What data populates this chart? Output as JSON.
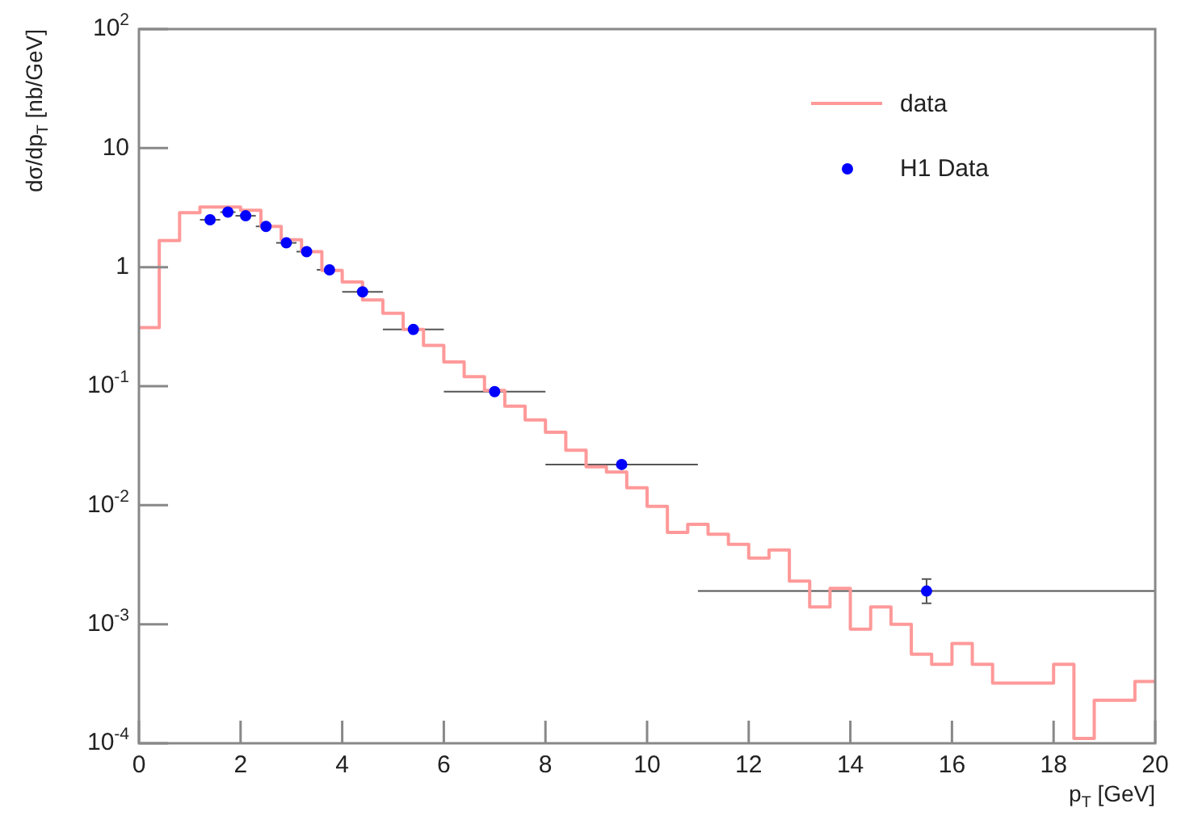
{
  "chart_data": {
    "type": "histogram",
    "xlabel": "p$_{T}$ [GeV]",
    "ylabel": "dσ/dp$_{T}$ [nb/GeV]",
    "xlim": [
      0,
      20
    ],
    "xticks": [
      0,
      2,
      4,
      6,
      8,
      10,
      12,
      14,
      16,
      18,
      20
    ],
    "ylim": [
      0.0001,
      100
    ],
    "yticks": [
      {
        "value": 0.0001,
        "label": "10$^{-4}$"
      },
      {
        "value": 0.001,
        "label": "10$^{-3}$"
      },
      {
        "value": 0.01,
        "label": "10$^{-2}$"
      },
      {
        "value": 0.1,
        "label": "10$^{-1}$"
      },
      1,
      10,
      {
        "value": 100,
        "label": "10$^{2}$"
      }
    ],
    "log": "y",
    "legend": "top right",
    "marker": "circle",
    "series": [
      {
        "name": "data",
        "type": "histogram",
        "color": "#ff9999",
        "bins": [
          0,
          0.4,
          0.8,
          1.2,
          1.6,
          2,
          2.4,
          2.8,
          3.2,
          3.6,
          4,
          4.4,
          4.8,
          5.2,
          5.6,
          6,
          6.4,
          6.8,
          7.2,
          7.6,
          8,
          8.4,
          8.8,
          9.2,
          9.6,
          10,
          10.4,
          10.8,
          11.2,
          11.6,
          12,
          12.4,
          12.8,
          13.2,
          13.6,
          14,
          14.4,
          14.8,
          15.2,
          15.6,
          16,
          16.4,
          16.8,
          17.2,
          17.6,
          18,
          18.4,
          18.8,
          19.2,
          19.6,
          20
        ],
        "values": [
          0.31,
          1.67,
          2.87,
          3.2,
          3.2,
          3.0,
          2.2,
          1.7,
          1.35,
          0.94,
          0.75,
          0.53,
          0.41,
          0.3,
          0.22,
          0.16,
          0.12,
          0.092,
          0.068,
          0.052,
          0.041,
          0.029,
          0.021,
          0.019,
          0.014,
          0.0098,
          0.0059,
          0.0069,
          0.0057,
          0.0047,
          0.0036,
          0.0042,
          0.0023,
          0.0014,
          0.002,
          0.00091,
          0.0014,
          0.001,
          0.00056,
          0.00046,
          0.00069,
          0.00046,
          0.00032,
          0.00032,
          0.00032,
          0.00046,
          0.00011,
          0.00023,
          0.00023,
          0.00033
        ]
      },
      {
        "name": "H1 Data",
        "type": "scatter",
        "color": "#0000ff",
        "x": [
          1.4,
          1.75,
          2.1,
          2.5,
          2.9,
          3.3,
          3.75,
          4.4,
          5.4,
          7,
          9.5,
          15.5
        ],
        "values": [
          2.5,
          2.9,
          2.7,
          2.2,
          1.6,
          1.35,
          0.95,
          0.62,
          0.3,
          0.09,
          0.022,
          0.0019
        ],
        "xerrors": [
          0.2,
          0.15,
          0.2,
          0.2,
          0.2,
          0.2,
          0.25,
          0.4,
          0.6,
          1,
          1.5,
          4.5
        ],
        "errors": [
          null,
          null,
          null,
          null,
          null,
          null,
          null,
          null,
          null,
          null,
          null,
          [
            0.0015,
            0.0024
          ]
        ]
      }
    ]
  }
}
